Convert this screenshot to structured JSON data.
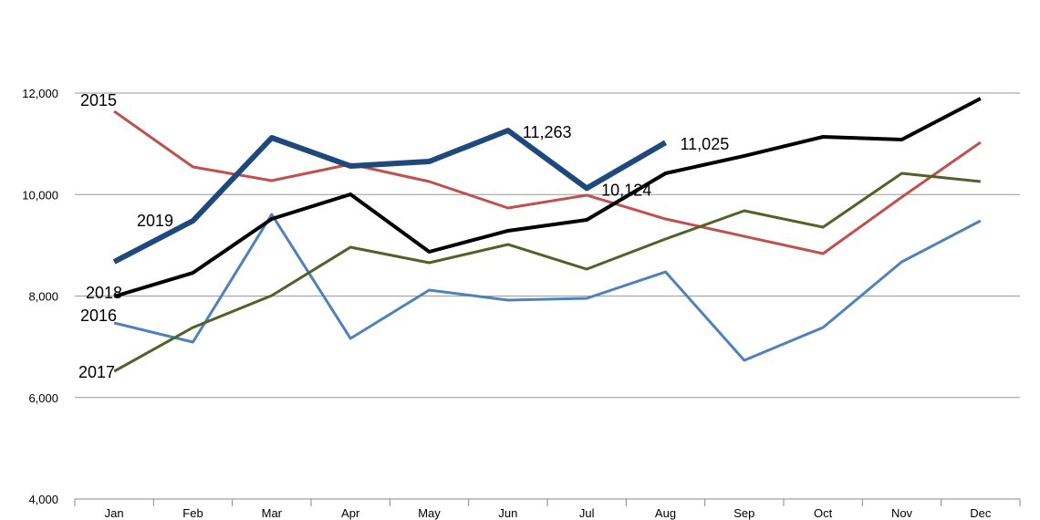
{
  "chart_data": {
    "type": "line",
    "categories": [
      "Jan",
      "Feb",
      "Mar",
      "Apr",
      "May",
      "Jun",
      "Jul",
      "Aug",
      "Sep",
      "Oct",
      "Nov",
      "Dec"
    ],
    "series": [
      {
        "name": "2015",
        "color": "#c0504d",
        "values": [
          11640,
          10544,
          10274,
          10598,
          10256,
          9735,
          9987,
          9519,
          9177,
          8836,
          9950,
          11029
        ]
      },
      {
        "name": "2016",
        "color": "#4f81bd",
        "values": [
          7470,
          7092,
          9609,
          7164,
          8117,
          7919,
          7955,
          8476,
          6733,
          7380,
          8674,
          9483
        ]
      },
      {
        "name": "2017",
        "color": "#4f6228",
        "values": [
          6517,
          7380,
          8009,
          8962,
          8656,
          9016,
          8530,
          9124,
          9681,
          9357,
          10418,
          10256
        ]
      },
      {
        "name": "2018",
        "color": "#000000",
        "values": [
          7991,
          8458,
          9519,
          10004,
          8872,
          9286,
          9501,
          10418,
          10760,
          11137,
          11083,
          11892
        ]
      },
      {
        "name": "2019",
        "color": "#1f497d",
        "values": [
          8674,
          9483,
          11119,
          10562,
          10652,
          11263,
          10124,
          11025,
          null,
          null,
          null,
          null
        ],
        "value_labels": [
          null,
          null,
          null,
          null,
          null,
          "11,263",
          "10,124",
          "11,025",
          null,
          null,
          null,
          null
        ]
      }
    ],
    "ylim": [
      4000,
      12000
    ],
    "yticks": [
      {
        "value": 4000,
        "label": "4,000"
      },
      {
        "value": 6000,
        "label": "6,000"
      },
      {
        "value": 8000,
        "label": "8,000"
      },
      {
        "value": 10000,
        "label": "10,000"
      },
      {
        "value": 12000,
        "label": "12,000"
      }
    ],
    "grid": true
  }
}
